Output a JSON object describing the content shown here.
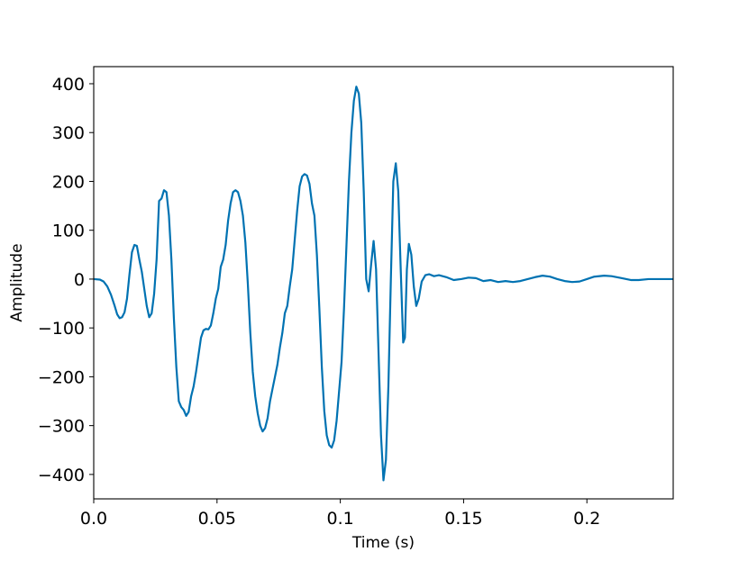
{
  "chart_data": {
    "type": "line",
    "title": "",
    "xlabel": "Time (s)",
    "ylabel": "Amplitude",
    "xlim": [
      0,
      0.235
    ],
    "ylim": [
      -450,
      435
    ],
    "grid": false,
    "line_color": "#0072b2",
    "x_ticks": [
      {
        "value": 0,
        "label": "0.0"
      },
      {
        "value": 0.05,
        "label": "0.05"
      },
      {
        "value": 0.1,
        "label": "0.1"
      },
      {
        "value": 0.15,
        "label": "0.15"
      },
      {
        "value": 0.2,
        "label": "0.2"
      }
    ],
    "y_ticks": [
      {
        "value": 400,
        "label": "400"
      },
      {
        "value": 300,
        "label": "300"
      },
      {
        "value": 200,
        "label": "200"
      },
      {
        "value": 100,
        "label": "100"
      },
      {
        "value": 0,
        "label": "0"
      },
      {
        "value": -100,
        "label": "−100"
      },
      {
        "value": -200,
        "label": "−200"
      },
      {
        "value": -300,
        "label": "−300"
      },
      {
        "value": -400,
        "label": "−400"
      }
    ],
    "series": [
      {
        "points": [
          [
            0.0,
            0
          ],
          [
            0.0025,
            -1
          ],
          [
            0.004,
            -5
          ],
          [
            0.0055,
            -15
          ],
          [
            0.007,
            -32
          ],
          [
            0.0085,
            -55
          ],
          [
            0.0095,
            -72
          ],
          [
            0.0105,
            -80
          ],
          [
            0.0115,
            -78
          ],
          [
            0.0125,
            -68
          ],
          [
            0.0135,
            -40
          ],
          [
            0.0145,
            10
          ],
          [
            0.0155,
            55
          ],
          [
            0.0165,
            70
          ],
          [
            0.0175,
            68
          ],
          [
            0.0185,
            40
          ],
          [
            0.0195,
            15
          ],
          [
            0.0205,
            -20
          ],
          [
            0.0215,
            -55
          ],
          [
            0.0225,
            -78
          ],
          [
            0.0235,
            -70
          ],
          [
            0.0245,
            -30
          ],
          [
            0.0255,
            40
          ],
          [
            0.0265,
            160
          ],
          [
            0.0275,
            165
          ],
          [
            0.0285,
            182
          ],
          [
            0.0295,
            178
          ],
          [
            0.0305,
            130
          ],
          [
            0.0315,
            40
          ],
          [
            0.0325,
            -80
          ],
          [
            0.0335,
            -180
          ],
          [
            0.0345,
            -250
          ],
          [
            0.0355,
            -262
          ],
          [
            0.0365,
            -268
          ],
          [
            0.0375,
            -280
          ],
          [
            0.0385,
            -272
          ],
          [
            0.0395,
            -240
          ],
          [
            0.0405,
            -220
          ],
          [
            0.0415,
            -190
          ],
          [
            0.0425,
            -155
          ],
          [
            0.0435,
            -120
          ],
          [
            0.0445,
            -105
          ],
          [
            0.0455,
            -102
          ],
          [
            0.0465,
            -103
          ],
          [
            0.0475,
            -95
          ],
          [
            0.0485,
            -70
          ],
          [
            0.0495,
            -40
          ],
          [
            0.0505,
            -20
          ],
          [
            0.0515,
            25
          ],
          [
            0.0525,
            40
          ],
          [
            0.0535,
            70
          ],
          [
            0.0545,
            120
          ],
          [
            0.0555,
            155
          ],
          [
            0.0565,
            178
          ],
          [
            0.0575,
            182
          ],
          [
            0.0585,
            178
          ],
          [
            0.0595,
            160
          ],
          [
            0.0605,
            130
          ],
          [
            0.0615,
            75
          ],
          [
            0.0625,
            -10
          ],
          [
            0.0635,
            -110
          ],
          [
            0.0645,
            -190
          ],
          [
            0.0655,
            -240
          ],
          [
            0.0665,
            -275
          ],
          [
            0.0675,
            -300
          ],
          [
            0.0685,
            -312
          ],
          [
            0.0695,
            -305
          ],
          [
            0.0705,
            -285
          ],
          [
            0.0715,
            -250
          ],
          [
            0.0725,
            -225
          ],
          [
            0.0735,
            -200
          ],
          [
            0.0745,
            -175
          ],
          [
            0.0755,
            -140
          ],
          [
            0.0765,
            -110
          ],
          [
            0.0775,
            -70
          ],
          [
            0.0785,
            -55
          ],
          [
            0.0795,
            -15
          ],
          [
            0.0805,
            20
          ],
          [
            0.0815,
            80
          ],
          [
            0.0825,
            140
          ],
          [
            0.0835,
            190
          ],
          [
            0.0845,
            210
          ],
          [
            0.0855,
            215
          ],
          [
            0.0865,
            212
          ],
          [
            0.0875,
            195
          ],
          [
            0.0885,
            155
          ],
          [
            0.0895,
            130
          ],
          [
            0.0905,
            50
          ],
          [
            0.0915,
            -60
          ],
          [
            0.0925,
            -180
          ],
          [
            0.0935,
            -270
          ],
          [
            0.0945,
            -320
          ],
          [
            0.0955,
            -340
          ],
          [
            0.0965,
            -345
          ],
          [
            0.0975,
            -330
          ],
          [
            0.0985,
            -290
          ],
          [
            0.0995,
            -230
          ],
          [
            0.1005,
            -170
          ],
          [
            0.1015,
            -60
          ],
          [
            0.1025,
            70
          ],
          [
            0.1035,
            200
          ],
          [
            0.1045,
            300
          ],
          [
            0.1055,
            365
          ],
          [
            0.1065,
            394
          ],
          [
            0.1075,
            380
          ],
          [
            0.1085,
            320
          ],
          [
            0.1095,
            180
          ],
          [
            0.1105,
            0
          ],
          [
            0.1115,
            -25
          ],
          [
            0.1125,
            30
          ],
          [
            0.1135,
            78
          ],
          [
            0.1145,
            20
          ],
          [
            0.1155,
            -150
          ],
          [
            0.1165,
            -320
          ],
          [
            0.1175,
            -412
          ],
          [
            0.1185,
            -370
          ],
          [
            0.1195,
            -220
          ],
          [
            0.1205,
            0
          ],
          [
            0.1215,
            200
          ],
          [
            0.1225,
            237
          ],
          [
            0.1235,
            180
          ],
          [
            0.1245,
            20
          ],
          [
            0.1255,
            -130
          ],
          [
            0.1262,
            -120
          ],
          [
            0.127,
            20
          ],
          [
            0.1278,
            72
          ],
          [
            0.1288,
            50
          ],
          [
            0.1298,
            -15
          ],
          [
            0.1308,
            -55
          ],
          [
            0.1318,
            -40
          ],
          [
            0.133,
            -5
          ],
          [
            0.1345,
            8
          ],
          [
            0.136,
            10
          ],
          [
            0.138,
            6
          ],
          [
            0.14,
            8
          ],
          [
            0.143,
            4
          ],
          [
            0.146,
            -2
          ],
          [
            0.149,
            0
          ],
          [
            0.152,
            3
          ],
          [
            0.155,
            2
          ],
          [
            0.158,
            -4
          ],
          [
            0.161,
            -2
          ],
          [
            0.164,
            -6
          ],
          [
            0.167,
            -4
          ],
          [
            0.17,
            -6
          ],
          [
            0.173,
            -4
          ],
          [
            0.176,
            0
          ],
          [
            0.179,
            4
          ],
          [
            0.182,
            7
          ],
          [
            0.185,
            5
          ],
          [
            0.188,
            0
          ],
          [
            0.191,
            -4
          ],
          [
            0.194,
            -6
          ],
          [
            0.197,
            -5
          ],
          [
            0.2,
            0
          ],
          [
            0.203,
            5
          ],
          [
            0.207,
            7
          ],
          [
            0.21,
            6
          ],
          [
            0.214,
            2
          ],
          [
            0.218,
            -2
          ],
          [
            0.221,
            -2
          ],
          [
            0.225,
            0
          ],
          [
            0.23,
            0
          ],
          [
            0.235,
            0
          ]
        ]
      }
    ]
  }
}
